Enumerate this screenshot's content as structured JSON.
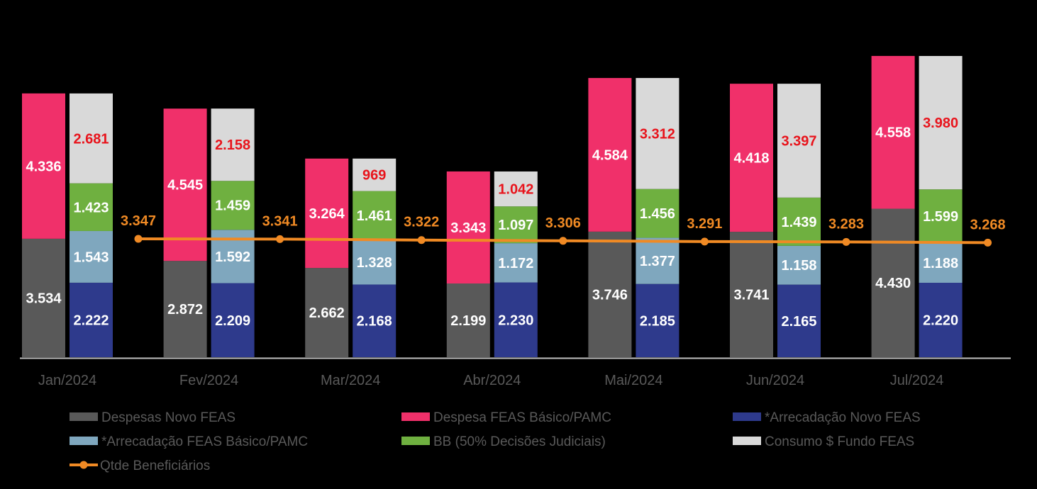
{
  "chart_data": {
    "type": "bar",
    "stacked": true,
    "categories": [
      "Jan/2024",
      "Fev/2024",
      "Mar/2024",
      "Abr/2024",
      "Mai/2024",
      "Jun/2024",
      "Jul/2024"
    ],
    "stacks": [
      {
        "name": "despesas",
        "series": [
          {
            "key": "despesas_novo",
            "name": "Despesas Novo FEAS",
            "color": "#595959",
            "label_color": "#FFFFFF",
            "values": [
              3534,
              2872,
              2662,
              2199,
              3746,
              3741,
              4430
            ],
            "labels": [
              "3.534",
              "2.872",
              "2.662",
              "2.199",
              "3.746",
              "3.741",
              "4.430"
            ]
          },
          {
            "key": "despesa_basico",
            "name": "Despesa FEAS Básico/PAMC",
            "color": "#F0306A",
            "label_color": "#FFFFFF",
            "values": [
              4336,
              4545,
              3264,
              3343,
              4584,
              4418,
              4558
            ],
            "labels": [
              "4.336",
              "4.545",
              "3.264",
              "3.343",
              "4.584",
              "4.418",
              "4.558"
            ]
          }
        ]
      },
      {
        "name": "arrecadacao",
        "series": [
          {
            "key": "arrec_novo",
            "name": "*Arrecadação Novo FEAS",
            "color": "#2E3A8C",
            "label_color": "#FFFFFF",
            "values": [
              2222,
              2209,
              2168,
              2230,
              2185,
              2165,
              2220
            ],
            "labels": [
              "2.222",
              "2.209",
              "2.168",
              "2.230",
              "2.185",
              "2.165",
              "2.220"
            ]
          },
          {
            "key": "arrec_basico",
            "name": "*Arrecadação FEAS Básico/PAMC",
            "color": "#7FA7BE",
            "label_color": "#FFFFFF",
            "values": [
              1543,
              1592,
              1328,
              1172,
              1377,
              1158,
              1188
            ],
            "labels": [
              "1.543",
              "1.592",
              "1.328",
              "1.172",
              "1.377",
              "1.158",
              "1.188"
            ]
          },
          {
            "key": "bb",
            "name": "BB (50% Decisões Judiciais)",
            "color": "#6FB040",
            "label_color": "#FFFFFF",
            "values": [
              1423,
              1459,
              1461,
              1097,
              1456,
              1439,
              1599
            ],
            "labels": [
              "1.423",
              "1.459",
              "1.461",
              "1.097",
              "1.456",
              "1.439",
              "1.599"
            ]
          },
          {
            "key": "consumo",
            "name": "Consumo $ Fundo FEAS",
            "color": "#D9D9D9",
            "label_color": "#E8141C",
            "values": [
              2681,
              2158,
              969,
              1042,
              3312,
              3397,
              3980
            ],
            "labels": [
              "2.681",
              "2.158",
              "969",
              "1.042",
              "3.312",
              "3.397",
              "3.980"
            ]
          }
        ]
      }
    ],
    "line": {
      "name": "Qtde Beneficiários",
      "color": "#F08A24",
      "values": [
        3347,
        3341,
        3322,
        3306,
        3291,
        3283,
        3268
      ],
      "labels": [
        "3.347",
        "3.341",
        "3.322",
        "3.306",
        "3.291",
        "3.283",
        "3.268"
      ],
      "ylim": [
        0,
        7000
      ]
    },
    "ylim": [
      0,
      9600
    ],
    "legend": {
      "position": "bottom",
      "order": [
        "despesas_novo",
        "despesa_basico",
        "arrec_novo",
        "arrec_basico",
        "bb",
        "consumo",
        "line"
      ]
    },
    "axis_color": "#BFBFBF",
    "tick_label_color": "#595959"
  }
}
